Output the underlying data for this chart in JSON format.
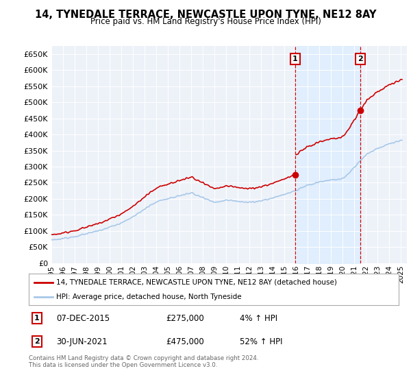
{
  "title": "14, TYNEDALE TERRACE, NEWCASTLE UPON TYNE, NE12 8AY",
  "subtitle": "Price paid vs. HM Land Registry's House Price Index (HPI)",
  "ylim": [
    0,
    675000
  ],
  "yticks": [
    0,
    50000,
    100000,
    150000,
    200000,
    250000,
    300000,
    350000,
    400000,
    450000,
    500000,
    550000,
    600000,
    650000
  ],
  "sale1_date": 2015.92,
  "sale1_price": 275000,
  "sale2_date": 2021.5,
  "sale2_price": 475000,
  "legend_house": "14, TYNEDALE TERRACE, NEWCASTLE UPON TYNE, NE12 8AY (detached house)",
  "legend_hpi": "HPI: Average price, detached house, North Tyneside",
  "footer": "Contains HM Land Registry data © Crown copyright and database right 2024.\nThis data is licensed under the Open Government Licence v3.0.",
  "hpi_color": "#a8c8e8",
  "house_color": "#cc0000",
  "shade_color": "#ddeeff",
  "background_color": "#edf2f9"
}
